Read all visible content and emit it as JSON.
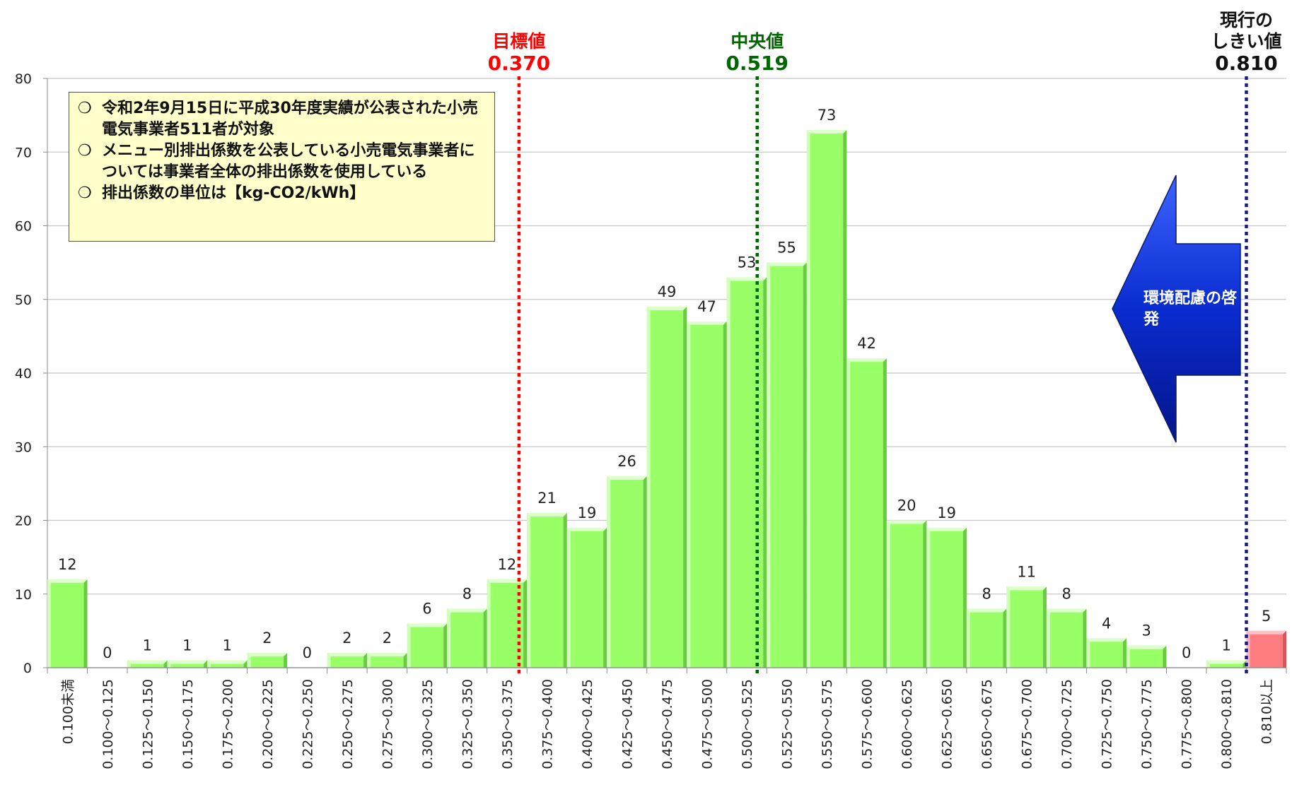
{
  "chart_data": {
    "type": "bar",
    "title": "",
    "xlabel": "",
    "ylabel": "",
    "ylim": [
      0,
      80
    ],
    "yticks": [
      0,
      10,
      20,
      30,
      40,
      50,
      60,
      70,
      80
    ],
    "grid": true,
    "categories": [
      "0.100未満",
      "0.100～0.125",
      "0.125～0.150",
      "0.150～0.175",
      "0.175～0.200",
      "0.200～0.225",
      "0.225～0.250",
      "0.250～0.275",
      "0.275～0.300",
      "0.300～0.325",
      "0.325～0.350",
      "0.350～0.375",
      "0.375～0.400",
      "0.400～0.425",
      "0.425～0.450",
      "0.450～0.475",
      "0.475～0.500",
      "0.500～0.525",
      "0.525～0.550",
      "0.550～0.575",
      "0.575～0.600",
      "0.600～0.625",
      "0.625～0.650",
      "0.650～0.675",
      "0.675～0.700",
      "0.700～0.725",
      "0.725～0.750",
      "0.750～0.775",
      "0.775～0.800",
      "0.800～0.810",
      "0.810以上"
    ],
    "values": [
      12,
      0,
      1,
      1,
      1,
      2,
      0,
      2,
      2,
      6,
      8,
      12,
      21,
      19,
      26,
      49,
      47,
      53,
      55,
      73,
      42,
      20,
      19,
      8,
      11,
      8,
      4,
      3,
      0,
      1,
      5
    ],
    "highlight_index": 30,
    "colors": {
      "bar": "#99ff66",
      "highlight": "#ff7c80",
      "target": "#ff0000",
      "median": "#006600",
      "threshold": "#1f1f7a",
      "arrow": "#0a2ccf"
    },
    "markers": [
      {
        "title": "目標値",
        "value": "0.370",
        "x": 0.37,
        "color": "#ff0000"
      },
      {
        "title": "中央値",
        "value": "0.519",
        "x": 0.519,
        "color": "#006600"
      },
      {
        "title_lines": [
          "現行の",
          "しきい値"
        ],
        "value": "0.810",
        "x": 0.81,
        "color": "#1f1f7a"
      }
    ]
  },
  "note": {
    "items": [
      {
        "bullet": "❍",
        "text": "令和2年9月15日に平成30年度実績が公表された小売電気事業者511者が対象"
      },
      {
        "bullet": "❍",
        "text": "メニュー別排出係数を公表している小売電気事業者については事業者全体の排出係数を使用している"
      },
      {
        "bullet": "❍",
        "text": "排出係数の単位は【kg-CO2/kWh】"
      }
    ]
  },
  "arrow": {
    "label": "環境配慮の啓発",
    "direction": "left"
  }
}
